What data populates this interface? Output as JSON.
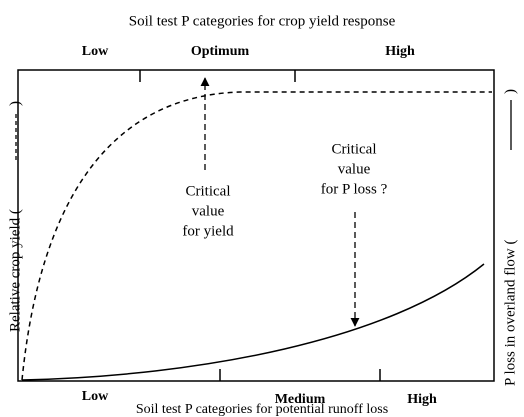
{
  "top_axis": {
    "title": "Soil test P categories for crop yield response",
    "categories": [
      "Low",
      "Optimum",
      "High"
    ]
  },
  "bottom_axis": {
    "title": "Soil test P categories for potential runoff loss",
    "categories": [
      "Low",
      "Medium",
      "High"
    ]
  },
  "left_axis": {
    "label": "Relative crop yield (",
    "close": ")"
  },
  "right_axis": {
    "label": "P loss in overland flow (",
    "close": ")"
  },
  "annotations": [
    {
      "lines": [
        "Critical",
        "value",
        "for yield"
      ]
    },
    {
      "lines": [
        "Critical",
        "value",
        "for P loss ?"
      ]
    }
  ]
}
